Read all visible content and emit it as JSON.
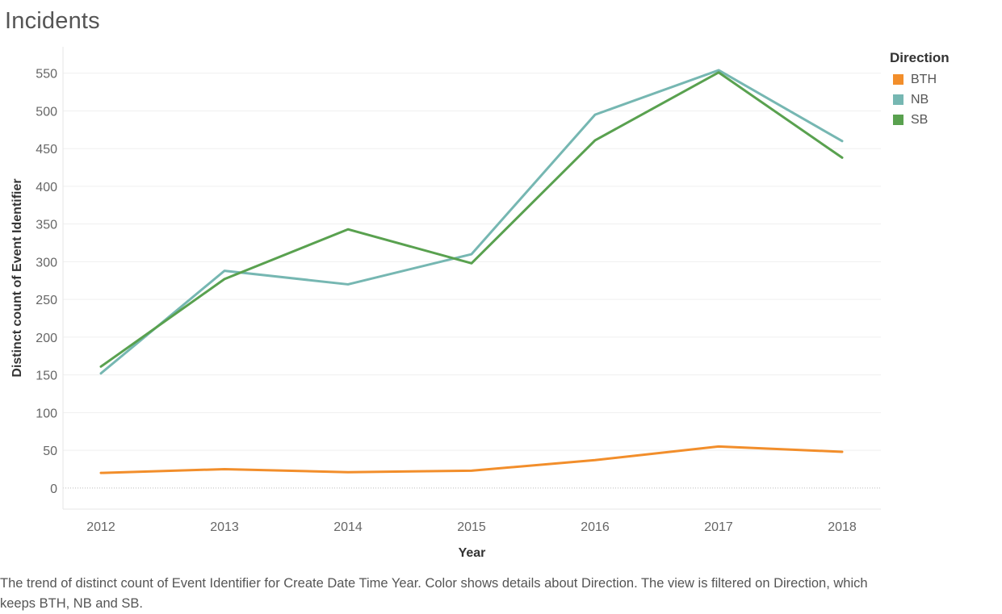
{
  "title": "Incidents",
  "caption": "The trend of distinct count of Event Identifier for Create Date Time Year.  Color shows details about Direction. The view is filtered on Direction, which keeps BTH, NB and SB.",
  "legend": {
    "title": "Direction",
    "items": [
      {
        "label": "BTH",
        "color": "#F28E2B"
      },
      {
        "label": "NB",
        "color": "#76B7B2"
      },
      {
        "label": "SB",
        "color": "#59A14F"
      }
    ]
  },
  "chart_data": {
    "type": "line",
    "title": "Incidents",
    "xlabel": "Year",
    "ylabel": "Distinct count of Event Identifier",
    "categories": [
      "2012",
      "2013",
      "2014",
      "2015",
      "2016",
      "2017",
      "2018"
    ],
    "ylim": [
      -28,
      585
    ],
    "yticks": [
      0,
      50,
      100,
      150,
      200,
      250,
      300,
      350,
      400,
      450,
      500,
      550
    ],
    "grid": true,
    "legend_position": "right",
    "series": [
      {
        "name": "BTH",
        "color": "#F28E2B",
        "values": [
          20,
          25,
          21,
          23,
          37,
          55,
          48
        ]
      },
      {
        "name": "NB",
        "color": "#76B7B2",
        "values": [
          152,
          288,
          270,
          310,
          495,
          554,
          460
        ]
      },
      {
        "name": "SB",
        "color": "#59A14F",
        "values": [
          161,
          277,
          343,
          298,
          461,
          551,
          438
        ]
      }
    ]
  }
}
